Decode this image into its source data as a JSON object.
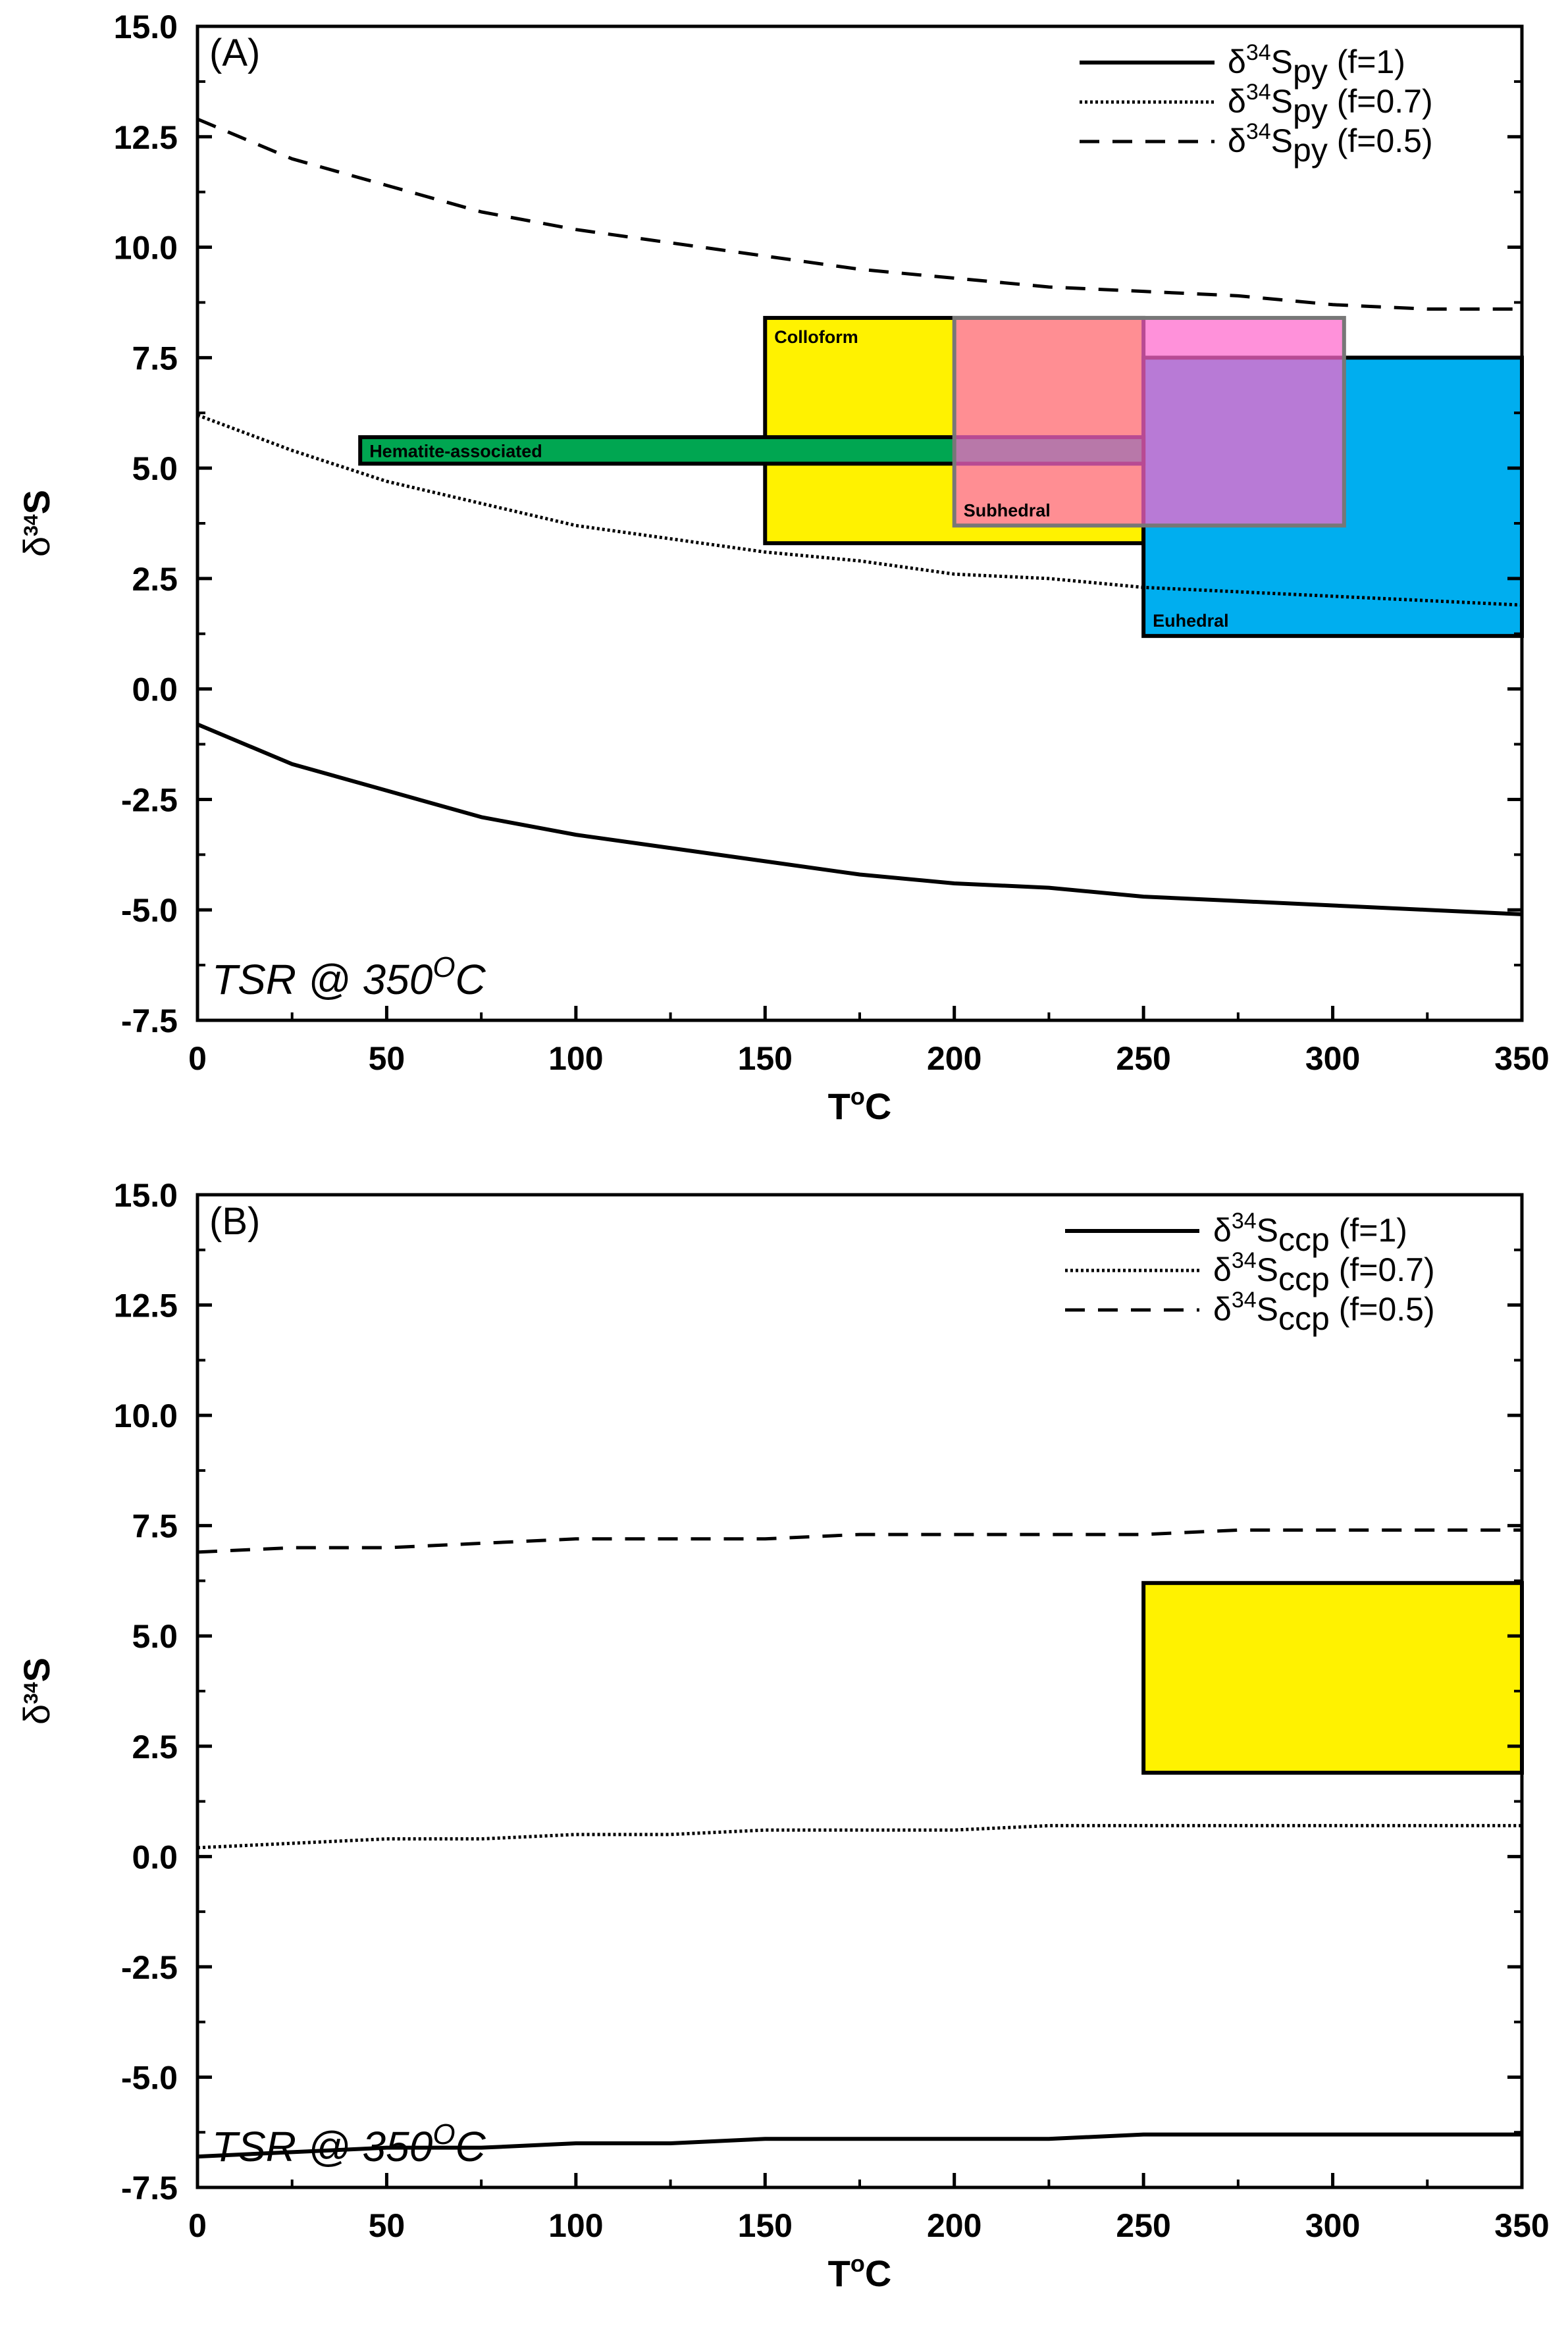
{
  "chart_data": [
    {
      "type": "line",
      "panel_label": "(A)",
      "xlabel": "T",
      "xlabel_sup": "o",
      "xlabel_unit": "C",
      "ylabel": "δ",
      "ylabel_sup": "34",
      "ylabel_unit": "S",
      "xlim": [
        0,
        350
      ],
      "ylim": [
        -7.5,
        15.0
      ],
      "x_ticks": [
        "0",
        "50",
        "100",
        "150",
        "200",
        "250",
        "300",
        "350"
      ],
      "y_ticks": [
        "-7.5",
        "-5.0",
        "-2.5",
        "0.0",
        "2.5",
        "5.0",
        "7.5",
        "10.0",
        "12.5",
        "15.0"
      ],
      "annotation": {
        "text": "TSR @ 350",
        "sup": "O",
        "unit": "C"
      },
      "legend_position": "top-right",
      "series": [
        {
          "name": "δ34Spy (f=1)",
          "legend": {
            "delta": "δ",
            "sup": "34",
            "base": "S",
            "sub": "py",
            "tail": " (f=1)"
          },
          "style": "solid",
          "x": [
            0,
            25,
            50,
            75,
            100,
            125,
            150,
            175,
            200,
            225,
            250,
            275,
            300,
            325,
            350
          ],
          "y": [
            -0.8,
            -1.7,
            -2.3,
            -2.9,
            -3.3,
            -3.6,
            -3.9,
            -4.2,
            -4.4,
            -4.5,
            -4.7,
            -4.8,
            -4.9,
            -5.0,
            -5.1
          ]
        },
        {
          "name": "δ34Spy (f=0.7)",
          "legend": {
            "delta": "δ",
            "sup": "34",
            "base": "S",
            "sub": "py",
            "tail": " (f=0.7)"
          },
          "style": "dotted",
          "x": [
            0,
            25,
            50,
            75,
            100,
            125,
            150,
            175,
            200,
            225,
            250,
            275,
            300,
            325,
            350
          ],
          "y": [
            6.2,
            5.4,
            4.7,
            4.2,
            3.7,
            3.4,
            3.1,
            2.9,
            2.6,
            2.5,
            2.3,
            2.2,
            2.1,
            2.0,
            1.9
          ]
        },
        {
          "name": "δ34Spy (f=0.5)",
          "legend": {
            "delta": "δ",
            "sup": "34",
            "base": "S",
            "sub": "py",
            "tail": " (f=0.5)"
          },
          "style": "dashed",
          "x": [
            0,
            25,
            50,
            75,
            100,
            125,
            150,
            175,
            200,
            225,
            250,
            275,
            300,
            325,
            350
          ],
          "y": [
            12.9,
            12.0,
            11.4,
            10.8,
            10.4,
            10.1,
            9.8,
            9.5,
            9.3,
            9.1,
            9.0,
            8.9,
            8.7,
            8.6,
            8.6
          ]
        }
      ],
      "boxes": [
        {
          "label": "Colloform",
          "x0": 150,
          "x1": 250,
          "y0": 3.3,
          "y1": 8.4,
          "color": "#fff200",
          "opacity": 1.0,
          "border": "#000000",
          "label_pos": "top-left"
        },
        {
          "label": "Euhedral",
          "x0": 250,
          "x1": 350,
          "y0": 1.2,
          "y1": 7.5,
          "color": "#00aeef",
          "opacity": 1.0,
          "border": "#000000",
          "label_pos": "bottom-left"
        },
        {
          "label": "Hematite-associated",
          "x0": 43,
          "x1": 250,
          "y0": 5.1,
          "y1": 5.7,
          "color": "#00a651",
          "opacity": 1.0,
          "border": "#000000",
          "label_pos": "inside-left"
        },
        {
          "label": "Subhedral",
          "x0": 200,
          "x1": 303,
          "y0": 3.7,
          "y1": 8.4,
          "color": "#ff66cc",
          "opacity": 0.72,
          "border": "#777777",
          "label_pos": "bottom-left"
        }
      ]
    },
    {
      "type": "line",
      "panel_label": "(B)",
      "xlabel": "T",
      "xlabel_sup": "o",
      "xlabel_unit": "C",
      "ylabel": "δ",
      "ylabel_sup": "34",
      "ylabel_unit": "S",
      "xlim": [
        0,
        350
      ],
      "ylim": [
        -7.5,
        15.0
      ],
      "x_ticks": [
        "0",
        "50",
        "100",
        "150",
        "200",
        "250",
        "300",
        "350"
      ],
      "y_ticks": [
        "-7.5",
        "-5.0",
        "-2.5",
        "0.0",
        "2.5",
        "5.0",
        "7.5",
        "10.0",
        "12.5",
        "15.0"
      ],
      "annotation": {
        "text": "TSR @ 350",
        "sup": "O",
        "unit": "C"
      },
      "legend_position": "top-right",
      "series": [
        {
          "name": "δ34Sccp (f=1)",
          "legend": {
            "delta": "δ",
            "sup": "34",
            "base": "S",
            "sub": "ccp",
            "tail": " (f=1)"
          },
          "style": "solid",
          "x": [
            0,
            25,
            50,
            75,
            100,
            125,
            150,
            175,
            200,
            225,
            250,
            275,
            300,
            325,
            350
          ],
          "y": [
            -6.8,
            -6.7,
            -6.6,
            -6.6,
            -6.5,
            -6.5,
            -6.4,
            -6.4,
            -6.4,
            -6.4,
            -6.3,
            -6.3,
            -6.3,
            -6.3,
            -6.3
          ]
        },
        {
          "name": "δ34Sccp (f=0.7)",
          "legend": {
            "delta": "δ",
            "sup": "34",
            "base": "S",
            "sub": "ccp",
            "tail": " (f=0.7)"
          },
          "style": "dotted",
          "x": [
            0,
            25,
            50,
            75,
            100,
            125,
            150,
            175,
            200,
            225,
            250,
            275,
            300,
            325,
            350
          ],
          "y": [
            0.2,
            0.3,
            0.4,
            0.4,
            0.5,
            0.5,
            0.6,
            0.6,
            0.6,
            0.7,
            0.7,
            0.7,
            0.7,
            0.7,
            0.7
          ]
        },
        {
          "name": "δ34Sccp (f=0.5)",
          "legend": {
            "delta": "δ",
            "sup": "34",
            "base": "S",
            "sub": "ccp",
            "tail": " (f=0.5)"
          },
          "style": "dashed",
          "x": [
            0,
            25,
            50,
            75,
            100,
            125,
            150,
            175,
            200,
            225,
            250,
            275,
            300,
            325,
            350
          ],
          "y": [
            6.9,
            7.0,
            7.0,
            7.1,
            7.2,
            7.2,
            7.2,
            7.3,
            7.3,
            7.3,
            7.3,
            7.4,
            7.4,
            7.4,
            7.4
          ]
        }
      ],
      "boxes": [
        {
          "label": "",
          "x0": 250,
          "x1": 350,
          "y0": 1.9,
          "y1": 6.2,
          "color": "#fff200",
          "opacity": 1.0,
          "border": "#000000",
          "label_pos": "none"
        }
      ]
    }
  ]
}
